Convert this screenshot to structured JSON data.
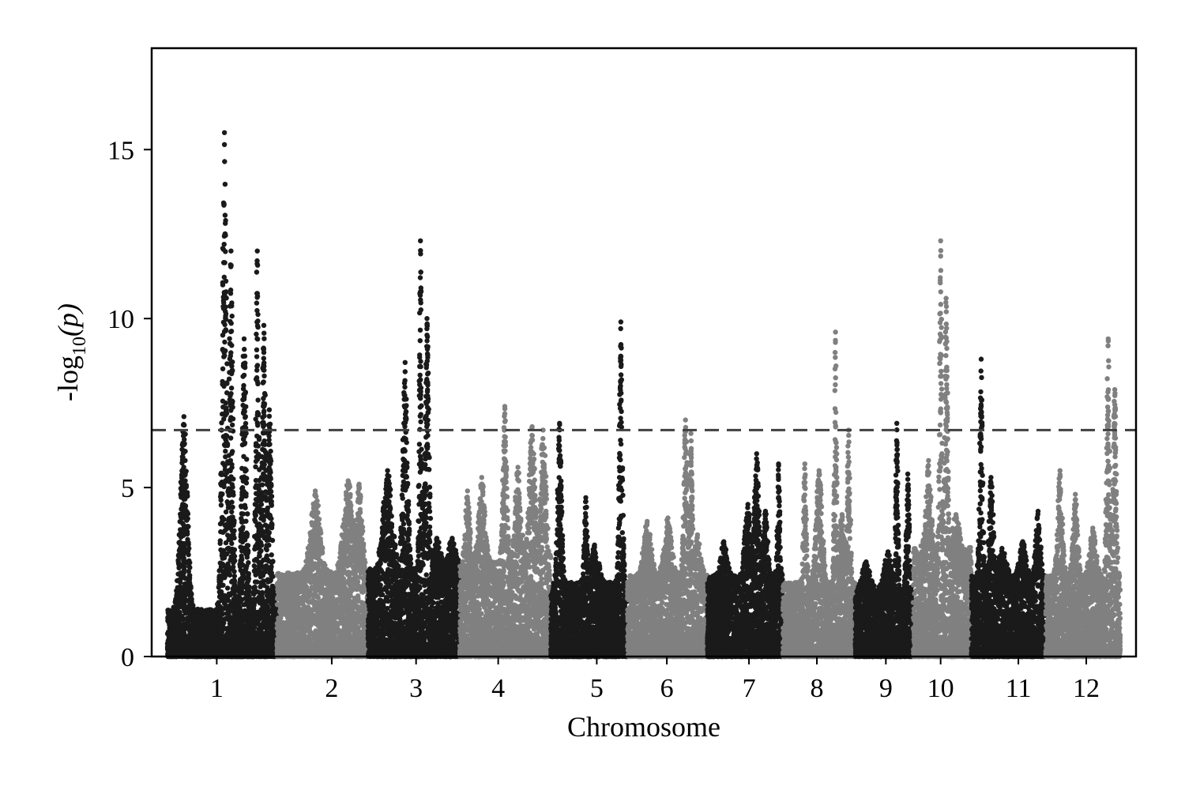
{
  "chart_data": {
    "type": "scatter",
    "subtype": "manhattan",
    "title": "",
    "xlabel": "Chromosome",
    "ylabel": {
      "prefix": "-log",
      "subscript": "10",
      "suffix": "(p)"
    },
    "ylim": [
      0,
      18
    ],
    "yticks": [
      0,
      5,
      10,
      15
    ],
    "threshold": 6.7,
    "threshold_style": "dashed",
    "grid": false,
    "legend": "none",
    "colors": {
      "odd": "#1a1a1a",
      "even": "#808080",
      "threshold": "#404040",
      "axis": "#000000"
    },
    "chromosomes": [
      {
        "label": "1",
        "start": 0,
        "end": 1000,
        "tick": 450,
        "base": 1.4,
        "peaks": [
          [
            150,
            7.1,
            45
          ],
          [
            520,
            15.5,
            30
          ],
          [
            580,
            12.0,
            25
          ],
          [
            700,
            9.4,
            30
          ],
          [
            820,
            12.0,
            20
          ],
          [
            880,
            9.8,
            25
          ],
          [
            930,
            7.3,
            30
          ]
        ]
      },
      {
        "label": "2",
        "start": 1000,
        "end": 1830,
        "tick": 1500,
        "base": 2.5,
        "peaks": [
          [
            1350,
            4.9,
            60
          ],
          [
            1650,
            5.2,
            60
          ],
          [
            1750,
            5.1,
            40
          ]
        ]
      },
      {
        "label": "3",
        "start": 1830,
        "end": 2670,
        "tick": 2270,
        "base": 2.6,
        "peaks": [
          [
            2010,
            5.5,
            60
          ],
          [
            2170,
            8.7,
            30
          ],
          [
            2310,
            12.3,
            15
          ],
          [
            2370,
            10.0,
            25
          ],
          [
            2460,
            3.5,
            50
          ],
          [
            2600,
            3.5,
            50
          ]
        ]
      },
      {
        "label": "4",
        "start": 2670,
        "end": 3500,
        "tick": 3020,
        "base": 2.8,
        "peaks": [
          [
            2740,
            4.9,
            30
          ],
          [
            2870,
            5.3,
            40
          ],
          [
            3080,
            7.4,
            25
          ],
          [
            3200,
            5.6,
            40
          ],
          [
            3330,
            6.8,
            40
          ],
          [
            3430,
            6.7,
            40
          ]
        ]
      },
      {
        "label": "5",
        "start": 3500,
        "end": 4200,
        "tick": 3920,
        "base": 2.2,
        "peaks": [
          [
            3580,
            6.9,
            25
          ],
          [
            3820,
            4.7,
            20
          ],
          [
            3900,
            3.3,
            50
          ],
          [
            4140,
            9.9,
            20
          ]
        ]
      },
      {
        "label": "6",
        "start": 4200,
        "end": 4930,
        "tick": 4560,
        "base": 2.4,
        "peaks": [
          [
            4380,
            4.0,
            50
          ],
          [
            4570,
            4.1,
            50
          ],
          [
            4730,
            7.0,
            25
          ],
          [
            4780,
            6.6,
            20
          ],
          [
            4840,
            3.6,
            40
          ]
        ]
      },
      {
        "label": "7",
        "start": 4930,
        "end": 5620,
        "tick": 5310,
        "base": 2.4,
        "peaks": [
          [
            5080,
            3.4,
            40
          ],
          [
            5300,
            4.5,
            40
          ],
          [
            5380,
            6.0,
            30
          ],
          [
            5460,
            4.3,
            30
          ],
          [
            5580,
            5.7,
            15
          ]
        ]
      },
      {
        "label": "8",
        "start": 5620,
        "end": 6280,
        "tick": 5930,
        "base": 2.2,
        "peaks": [
          [
            5820,
            5.7,
            20
          ],
          [
            5950,
            5.5,
            40
          ],
          [
            6100,
            9.6,
            15
          ],
          [
            6160,
            4.2,
            40
          ],
          [
            6220,
            6.7,
            20
          ]
        ]
      },
      {
        "label": "9",
        "start": 6280,
        "end": 6810,
        "tick": 6560,
        "base": 2.0,
        "peaks": [
          [
            6380,
            2.8,
            50
          ],
          [
            6580,
            3.1,
            50
          ],
          [
            6660,
            6.9,
            15
          ],
          [
            6760,
            5.4,
            20
          ]
        ]
      },
      {
        "label": "10",
        "start": 6810,
        "end": 7340,
        "tick": 7060,
        "base": 3.3,
        "peaks": [
          [
            6950,
            5.8,
            30
          ],
          [
            7060,
            12.3,
            15
          ],
          [
            7110,
            10.6,
            20
          ],
          [
            7200,
            4.2,
            40
          ]
        ]
      },
      {
        "label": "11",
        "start": 7340,
        "end": 8020,
        "tick": 7770,
        "base": 2.4,
        "peaks": [
          [
            7430,
            8.8,
            20
          ],
          [
            7520,
            5.3,
            30
          ],
          [
            7620,
            3.2,
            50
          ],
          [
            7810,
            3.4,
            40
          ],
          [
            7950,
            4.3,
            30
          ]
        ]
      },
      {
        "label": "12",
        "start": 8020,
        "end": 8700,
        "tick": 8390,
        "base": 2.4,
        "peaks": [
          [
            8150,
            5.5,
            30
          ],
          [
            8290,
            4.8,
            30
          ],
          [
            8450,
            3.8,
            40
          ],
          [
            8590,
            9.4,
            20
          ],
          [
            8650,
            7.9,
            20
          ]
        ]
      }
    ]
  }
}
